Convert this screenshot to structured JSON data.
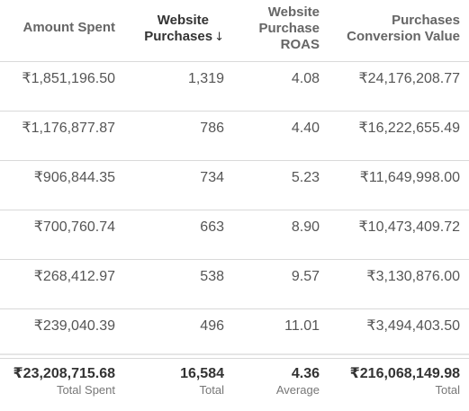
{
  "headers": {
    "amount_spent": "Amount Spent",
    "website_purchases_line1": "Website",
    "website_purchases_line2": "Purchases",
    "sort_arrow": "↓",
    "roas_line1": "Website",
    "roas_line2": "Purchase",
    "roas_line3": "ROAS",
    "conv_value_line1": "Purchases",
    "conv_value_line2": "Conversion Value"
  },
  "rows": [
    {
      "amount_spent": "₹1,851,196.50",
      "website_purchases": "1,319",
      "roas": "4.08",
      "conversion_value": "₹24,176,208.77"
    },
    {
      "amount_spent": "₹1,176,877.87",
      "website_purchases": "786",
      "roas": "4.40",
      "conversion_value": "₹16,222,655.49"
    },
    {
      "amount_spent": "₹906,844.35",
      "website_purchases": "734",
      "roas": "5.23",
      "conversion_value": "₹11,649,998.00"
    },
    {
      "amount_spent": "₹700,760.74",
      "website_purchases": "663",
      "roas": "8.90",
      "conversion_value": "₹10,473,409.72"
    },
    {
      "amount_spent": "₹268,412.97",
      "website_purchases": "538",
      "roas": "9.57",
      "conversion_value": "₹3,130,876.00"
    },
    {
      "amount_spent": "₹239,040.39",
      "website_purchases": "496",
      "roas": "11.01",
      "conversion_value": "₹3,494,403.50"
    }
  ],
  "totals": {
    "amount_spent": {
      "value": "₹23,208,715.68",
      "label": "Total Spent"
    },
    "website_purchases": {
      "value": "16,584",
      "label": "Total"
    },
    "roas": {
      "value": "4.36",
      "label": "Average"
    },
    "conversion_value": {
      "value": "₹216,068,149.98",
      "label": "Total"
    }
  }
}
